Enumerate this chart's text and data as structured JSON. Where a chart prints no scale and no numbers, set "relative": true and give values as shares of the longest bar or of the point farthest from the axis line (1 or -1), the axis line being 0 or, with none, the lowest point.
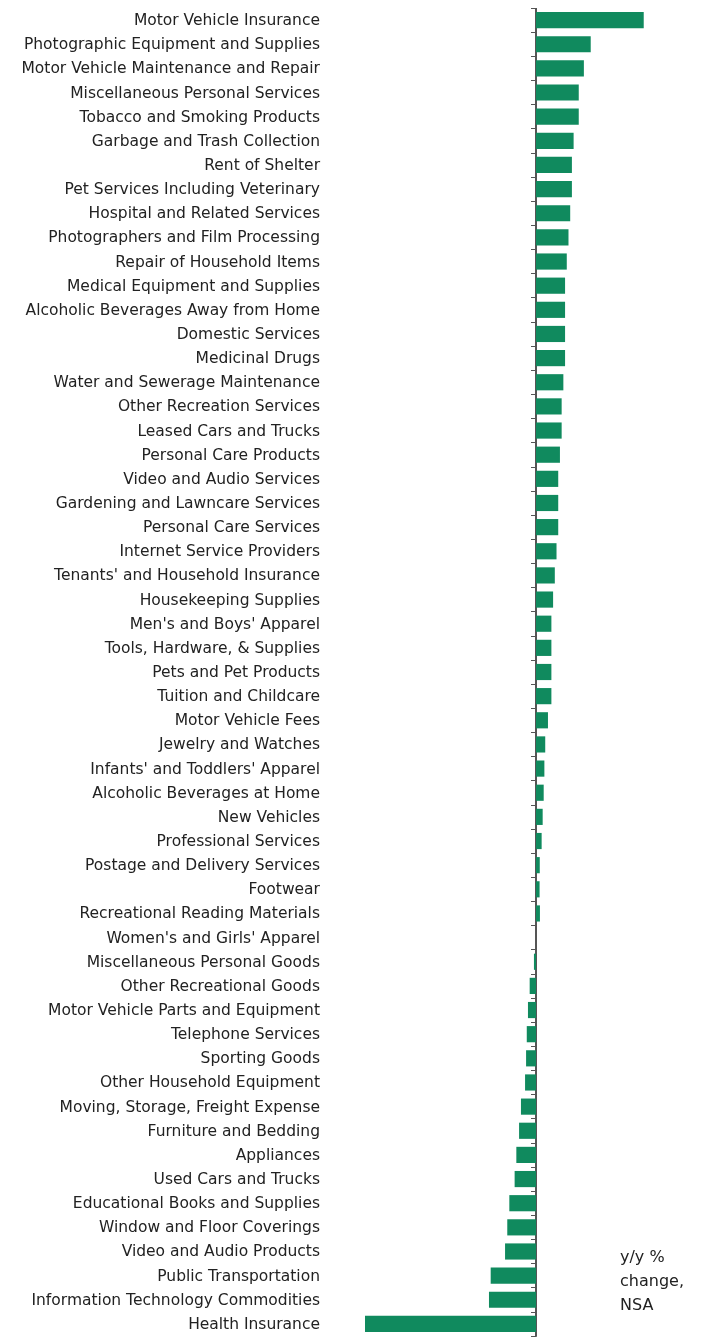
{
  "chart_data": {
    "type": "bar",
    "orientation": "horizontal",
    "relative": true,
    "color": "#108a5e",
    "xlabel": "y/y % change, NSA",
    "categories": [
      "Motor Vehicle Insurance",
      "Photographic Equipment and Supplies",
      "Motor Vehicle Maintenance and Repair",
      "Miscellaneous Personal Services",
      "Tobacco and Smoking Products",
      "Garbage and Trash Collection",
      "Rent of Shelter",
      "Pet Services Including Veterinary",
      "Hospital and Related Services",
      "Photographers and Film Processing",
      "Repair of Household Items",
      "Medical Equipment and Supplies",
      "Alcoholic Beverages Away from Home",
      "Domestic Services",
      "Medicinal Drugs",
      "Water and Sewerage Maintenance",
      "Other Recreation Services",
      "Leased Cars and Trucks",
      "Personal Care Products",
      "Video and Audio Services",
      "Gardening and Lawncare Services",
      "Personal Care Services",
      "Internet Service Providers",
      "Tenants' and Household Insurance",
      "Housekeeping Supplies",
      "Men's and Boys' Apparel",
      "Tools, Hardware, & Supplies",
      "Pets and Pet Products",
      "Tuition and Childcare",
      "Motor Vehicle Fees",
      "Jewelry and Watches",
      "Infants' and Toddlers' Apparel",
      "Alcoholic Beverages at Home",
      "New Vehicles",
      "Professional Services",
      "Postage and Delivery Services",
      "Footwear",
      "Recreational Reading Materials",
      "Women's and Girls' Apparel",
      "Miscellaneous Personal Goods",
      "Other Recreational Goods",
      "Motor Vehicle Parts and Equipment",
      "Telephone Services",
      "Sporting Goods",
      "Other Household Equipment",
      "Moving, Storage, Freight Expense",
      "Furniture and Bedding",
      "Appliances",
      "Used Cars and Trucks",
      "Educational Books and Supplies",
      "Window and Floor Coverings",
      "Video and Audio Products",
      "Public Transportation",
      "Information Technology Commodities",
      "Health Insurance"
    ],
    "values": [
      0.63,
      0.32,
      0.28,
      0.25,
      0.25,
      0.22,
      0.21,
      0.21,
      0.2,
      0.19,
      0.18,
      0.17,
      0.17,
      0.17,
      0.17,
      0.16,
      0.15,
      0.15,
      0.14,
      0.13,
      0.13,
      0.13,
      0.12,
      0.11,
      0.1,
      0.09,
      0.09,
      0.09,
      0.09,
      0.07,
      0.054,
      0.049,
      0.045,
      0.039,
      0.033,
      0.022,
      0.021,
      0.023,
      0,
      -0.012,
      -0.037,
      -0.047,
      -0.054,
      -0.058,
      -0.064,
      -0.088,
      -0.099,
      -0.115,
      -0.125,
      -0.156,
      -0.168,
      -0.181,
      -0.265,
      -0.275,
      -1
    ]
  }
}
